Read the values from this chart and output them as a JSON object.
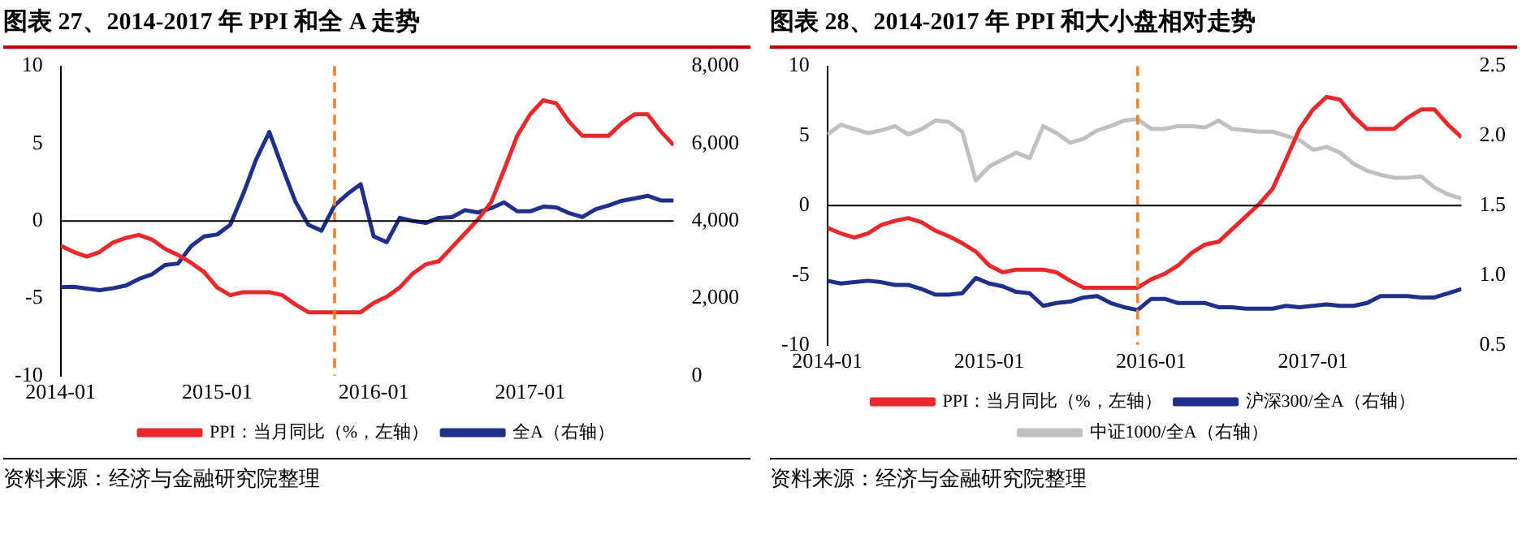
{
  "chart_data": [
    {
      "type": "line",
      "title": "图表 27、2014-2017 年 PPI 和全 A 走势",
      "x": [
        "2014-01",
        "2014-02",
        "2014-03",
        "2014-04",
        "2014-05",
        "2014-06",
        "2014-07",
        "2014-08",
        "2014-09",
        "2014-10",
        "2014-11",
        "2014-12",
        "2015-01",
        "2015-02",
        "2015-03",
        "2015-04",
        "2015-05",
        "2015-06",
        "2015-07",
        "2015-08",
        "2015-09",
        "2015-10",
        "2015-11",
        "2015-12",
        "2016-01",
        "2016-02",
        "2016-03",
        "2016-04",
        "2016-05",
        "2016-06",
        "2016-07",
        "2016-08",
        "2016-09",
        "2016-10",
        "2016-11",
        "2016-12",
        "2017-01",
        "2017-02",
        "2017-03",
        "2017-04",
        "2017-05",
        "2017-06",
        "2017-07",
        "2017-08",
        "2017-09",
        "2017-10",
        "2017-11",
        "2017-12"
      ],
      "series": [
        {
          "name": "PPI：当月同比（%，左轴）",
          "color": "#e8282b",
          "values": [
            -1.6,
            -2.0,
            -2.3,
            -2.0,
            -1.4,
            -1.1,
            -0.9,
            -1.2,
            -1.8,
            -2.2,
            -2.7,
            -3.3,
            -4.3,
            -4.8,
            -4.6,
            -4.6,
            -4.6,
            -4.8,
            -5.4,
            -5.9,
            -5.9,
            -5.9,
            -5.9,
            -5.9,
            -5.3,
            -4.9,
            -4.3,
            -3.4,
            -2.8,
            -2.6,
            -1.7,
            -0.8,
            0.1,
            1.2,
            3.3,
            5.5,
            6.9,
            7.8,
            7.6,
            6.4,
            5.5,
            5.5,
            5.5,
            6.3,
            6.9,
            6.9,
            5.8,
            4.9
          ]
        },
        {
          "name": "全A（右轴）",
          "color": "#1f2f8c",
          "axis": "y2",
          "values": [
            2290,
            2300,
            2250,
            2210,
            2260,
            2330,
            2500,
            2620,
            2860,
            2900,
            3350,
            3600,
            3650,
            3900,
            4700,
            5600,
            6300,
            5380,
            4500,
            3900,
            3750,
            4400,
            4700,
            4950,
            3600,
            3450,
            4080,
            4000,
            3950,
            4080,
            4100,
            4280,
            4220,
            4330,
            4480,
            4250,
            4250,
            4370,
            4350,
            4200,
            4100,
            4300,
            4400,
            4520,
            4580,
            4650,
            4530,
            4530
          ]
        }
      ],
      "xlim": [
        "2014-01",
        "2017-12"
      ],
      "xticks": [
        "2014-01",
        "2015-01",
        "2016-01",
        "2017-01"
      ],
      "ylim": [
        -10,
        10
      ],
      "yticks": [
        -10,
        -5,
        0,
        5,
        10
      ],
      "y2lim": [
        0,
        8000
      ],
      "y2ticks": [
        0,
        {
          "value": 2000,
          "label": "2,000"
        },
        {
          "value": 4000,
          "label": "4,000"
        },
        {
          "value": 6000,
          "label": "6,000"
        },
        {
          "value": 8000,
          "label": "8,000"
        }
      ],
      "ref_lines": [
        {
          "axis": "x",
          "value": "2015-10",
          "color": "#f4822b",
          "line_style": "dashed"
        },
        {
          "axis": "y",
          "value": 0,
          "color": "#000000",
          "line_style": "solid"
        }
      ],
      "annotations": [
        "资料来源：经济与金融研究院整理"
      ],
      "grid": false,
      "legend": "bottom",
      "marker": "none",
      "line_style": "solid"
    },
    {
      "type": "line",
      "title": "图表 28、2014-2017 年 PPI 和大小盘相对走势",
      "x": [
        "2014-01",
        "2014-02",
        "2014-03",
        "2014-04",
        "2014-05",
        "2014-06",
        "2014-07",
        "2014-08",
        "2014-09",
        "2014-10",
        "2014-11",
        "2014-12",
        "2015-01",
        "2015-02",
        "2015-03",
        "2015-04",
        "2015-05",
        "2015-06",
        "2015-07",
        "2015-08",
        "2015-09",
        "2015-10",
        "2015-11",
        "2015-12",
        "2016-01",
        "2016-02",
        "2016-03",
        "2016-04",
        "2016-05",
        "2016-06",
        "2016-07",
        "2016-08",
        "2016-09",
        "2016-10",
        "2016-11",
        "2016-12",
        "2017-01",
        "2017-02",
        "2017-03",
        "2017-04",
        "2017-05",
        "2017-06",
        "2017-07",
        "2017-08",
        "2017-09",
        "2017-10",
        "2017-11",
        "2017-12"
      ],
      "series": [
        {
          "name": "PPI：当月同比（%，左轴）",
          "color": "#e8282b",
          "values": [
            -1.6,
            -2.0,
            -2.3,
            -2.0,
            -1.4,
            -1.1,
            -0.9,
            -1.2,
            -1.8,
            -2.2,
            -2.7,
            -3.3,
            -4.3,
            -4.8,
            -4.6,
            -4.6,
            -4.6,
            -4.8,
            -5.4,
            -5.9,
            -5.9,
            -5.9,
            -5.9,
            -5.9,
            -5.3,
            -4.9,
            -4.3,
            -3.4,
            -2.8,
            -2.6,
            -1.7,
            -0.8,
            0.1,
            1.2,
            3.3,
            5.5,
            6.9,
            7.8,
            7.6,
            6.4,
            5.5,
            5.5,
            5.5,
            6.3,
            6.9,
            6.9,
            5.8,
            4.9
          ]
        },
        {
          "name": "沪深300/全A（右轴）",
          "color": "#1f2f8c",
          "axis": "y2",
          "values": [
            0.96,
            0.94,
            0.95,
            0.96,
            0.95,
            0.93,
            0.93,
            0.9,
            0.86,
            0.86,
            0.87,
            0.98,
            0.94,
            0.92,
            0.88,
            0.87,
            0.78,
            0.8,
            0.81,
            0.84,
            0.85,
            0.8,
            0.77,
            0.75,
            0.83,
            0.83,
            0.8,
            0.8,
            0.8,
            0.77,
            0.77,
            0.76,
            0.76,
            0.76,
            0.78,
            0.77,
            0.78,
            0.79,
            0.78,
            0.78,
            0.8,
            0.85,
            0.85,
            0.85,
            0.84,
            0.84,
            0.87,
            0.9
          ]
        },
        {
          "name": "中证1000/全A（右轴）",
          "color": "#c0c0c0",
          "axis": "y2",
          "values": [
            2.01,
            2.08,
            2.05,
            2.02,
            2.04,
            2.07,
            2.01,
            2.05,
            2.11,
            2.1,
            2.03,
            1.68,
            1.78,
            1.83,
            1.88,
            1.84,
            2.07,
            2.02,
            1.95,
            1.98,
            2.04,
            2.07,
            2.11,
            2.12,
            2.05,
            2.05,
            2.07,
            2.07,
            2.06,
            2.11,
            2.05,
            2.04,
            2.03,
            2.03,
            2.0,
            1.97,
            1.9,
            1.92,
            1.88,
            1.8,
            1.75,
            1.72,
            1.7,
            1.7,
            1.71,
            1.63,
            1.58,
            1.55
          ]
        }
      ],
      "xlim": [
        "2014-01",
        "2017-12"
      ],
      "xticks": [
        "2014-01",
        "2015-01",
        "2016-01",
        "2017-01"
      ],
      "ylim": [
        -10,
        10
      ],
      "yticks": [
        -10,
        -5,
        0,
        5,
        10
      ],
      "y2lim": [
        0.5,
        2.5
      ],
      "y2ticks": [
        0.5,
        {
          "value": 1,
          "label": "1.0"
        },
        1.5,
        {
          "value": 2,
          "label": "2.0"
        },
        2.5
      ],
      "ref_lines": [
        {
          "axis": "x",
          "value": "2015-12",
          "color": "#f4822b",
          "line_style": "dashed"
        },
        {
          "axis": "y",
          "value": 0,
          "color": "#000000",
          "line_style": "solid"
        }
      ],
      "annotations": [
        "资料来源：经济与金融研究院整理"
      ],
      "grid": false,
      "legend": "bottom",
      "marker": "none",
      "line_style": "solid"
    }
  ]
}
